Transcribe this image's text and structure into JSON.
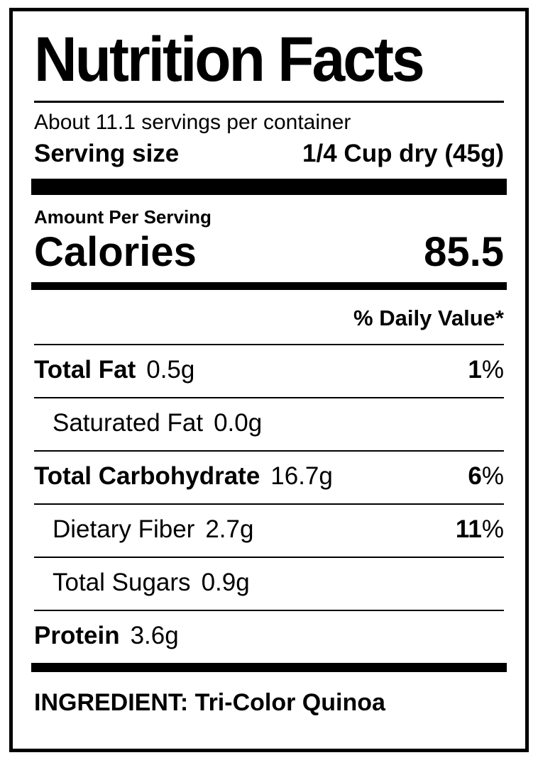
{
  "colors": {
    "text": "#000000",
    "background": "#ffffff"
  },
  "label": {
    "title": "Nutrition Facts",
    "servings_per_container": "About 11.1 servings per container",
    "serving_size": {
      "label": "Serving size",
      "value": "1/4 Cup dry (45g)"
    },
    "amount_per_serving": "Amount Per Serving",
    "calories": {
      "label": "Calories",
      "value": "85.5"
    },
    "daily_value_header": "% Daily Value*",
    "nutrients": [
      {
        "name": "Total Fat",
        "amount": "0.5g",
        "dv_number": "1",
        "dv_sign": "%"
      },
      {
        "name": "Saturated Fat",
        "amount": "0.0g"
      },
      {
        "name": "Total Carbohydrate",
        "amount": "16.7g",
        "dv_number": "6",
        "dv_sign": "%"
      },
      {
        "name": "Dietary Fiber",
        "amount": "2.7g",
        "dv_number": "11",
        "dv_sign": "%"
      },
      {
        "name": "Total Sugars",
        "amount": "0.9g"
      },
      {
        "name": "Protein",
        "amount": "3.6g"
      }
    ],
    "ingredient": "INGREDIENT: Tri-Color Quinoa"
  }
}
